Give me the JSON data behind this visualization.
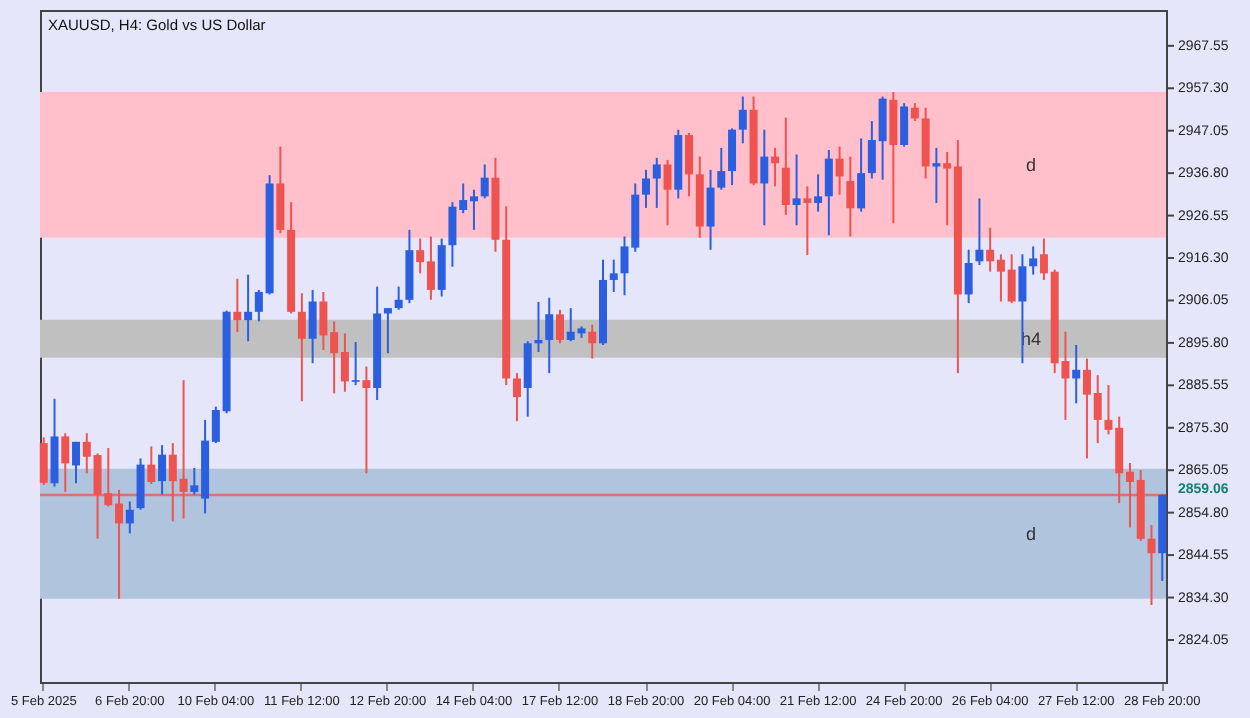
{
  "chart_data": {
    "type": "candlestick",
    "title": "XAUUSD, H4: Gold vs US Dollar",
    "categories": [
      "5 Feb 2025",
      null,
      null,
      null,
      null,
      null,
      null,
      null,
      "6 Feb 20:00",
      null,
      null,
      null,
      null,
      null,
      null,
      null,
      "10 Feb 04:00",
      null,
      null,
      null,
      null,
      null,
      null,
      null,
      "11 Feb 12:00",
      null,
      null,
      null,
      null,
      null,
      null,
      null,
      "12 Feb 20:00",
      null,
      null,
      null,
      null,
      null,
      null,
      null,
      "14 Feb 04:00",
      null,
      null,
      null,
      null,
      null,
      null,
      null,
      "17 Feb 12:00",
      null,
      null,
      null,
      null,
      null,
      null,
      null,
      "18 Feb 20:00",
      null,
      null,
      null,
      null,
      null,
      null,
      null,
      "20 Feb 04:00",
      null,
      null,
      null,
      null,
      null,
      null,
      null,
      "21 Feb 12:00",
      null,
      null,
      null,
      null,
      null,
      null,
      null,
      "24 Feb 20:00",
      null,
      null,
      null,
      null,
      null,
      null,
      null,
      "26 Feb 04:00",
      null,
      null,
      null,
      null,
      null,
      null,
      null,
      "27 Feb 12:00",
      null,
      null,
      null,
      null,
      null,
      null,
      null,
      "28 Feb 20:00"
    ],
    "ohlc": [
      [
        2871.6,
        2873.0,
        2861.5,
        2862.0
      ],
      [
        2861.9,
        2882.3,
        2861.1,
        2873.2
      ],
      [
        2873.2,
        2874.0,
        2859.8,
        2866.7
      ],
      [
        2866.2,
        2871.9,
        2861.9,
        2871.9
      ],
      [
        2871.9,
        2874.0,
        2864.3,
        2868.3
      ],
      [
        2868.7,
        2869.1,
        2848.5,
        2859.2
      ],
      [
        2859.5,
        2870.4,
        2856.3,
        2856.6
      ],
      [
        2857.0,
        2860.3,
        2834.0,
        2852.2
      ],
      [
        2852.2,
        2857.5,
        2849.8,
        2855.5
      ],
      [
        2855.9,
        2867.9,
        2855.5,
        2866.4
      ],
      [
        2866.4,
        2870.8,
        2861.7,
        2862.2
      ],
      [
        2862.4,
        2871.1,
        2859.2,
        2868.8
      ],
      [
        2868.8,
        2871.6,
        2852.7,
        2862.4
      ],
      [
        2863.0,
        2886.8,
        2853.4,
        2859.8
      ],
      [
        2859.8,
        2865.6,
        2859.2,
        2861.4
      ],
      [
        2858.2,
        2877.2,
        2854.6,
        2872.2
      ],
      [
        2871.9,
        2880.4,
        2871.6,
        2879.6
      ],
      [
        2879.3,
        2903.6,
        2878.8,
        2903.3
      ],
      [
        2903.3,
        2911.3,
        2898.4,
        2901.3
      ],
      [
        2901.3,
        2912.3,
        2896.2,
        2903.3
      ],
      [
        2903.3,
        2908.6,
        2901.0,
        2908.1
      ],
      [
        2907.8,
        2936.3,
        2907.5,
        2934.3
      ],
      [
        2934.3,
        2943.2,
        2922.3,
        2923.1
      ],
      [
        2923.1,
        2929.8,
        2902.9,
        2903.3
      ],
      [
        2903.3,
        2907.8,
        2881.7,
        2896.8
      ],
      [
        2896.8,
        2908.6,
        2890.9,
        2905.8
      ],
      [
        2905.8,
        2908.1,
        2894.1,
        2897.6
      ],
      [
        2898.4,
        2901.0,
        2883.6,
        2893.3
      ],
      [
        2893.6,
        2898.1,
        2884.0,
        2886.5
      ],
      [
        2886.4,
        2896.0,
        2885.6,
        2886.8
      ],
      [
        2886.8,
        2890.1,
        2864.3,
        2884.9
      ],
      [
        2884.9,
        2909.4,
        2882.0,
        2902.9
      ],
      [
        2902.9,
        2904.2,
        2893.3,
        2904.2
      ],
      [
        2904.2,
        2909.4,
        2903.8,
        2906.2
      ],
      [
        2906.2,
        2923.1,
        2905.4,
        2918.2
      ],
      [
        2918.2,
        2921.0,
        2912.6,
        2915.3
      ],
      [
        2915.5,
        2921.5,
        2906.2,
        2908.6
      ],
      [
        2908.6,
        2921.0,
        2907.0,
        2919.4
      ],
      [
        2919.4,
        2929.8,
        2914.2,
        2928.7
      ],
      [
        2927.9,
        2934.3,
        2927.1,
        2930.3
      ],
      [
        2930.0,
        2932.8,
        2923.1,
        2931.2
      ],
      [
        2931.2,
        2938.9,
        2930.7,
        2935.7
      ],
      [
        2935.7,
        2940.5,
        2917.8,
        2920.7
      ],
      [
        2920.7,
        2928.8,
        2885.6,
        2887.2
      ],
      [
        2887.2,
        2888.5,
        2876.9,
        2882.7
      ],
      [
        2884.9,
        2896.2,
        2878.0,
        2895.7
      ],
      [
        2895.7,
        2905.7,
        2893.6,
        2896.5
      ],
      [
        2896.5,
        2906.7,
        2888.5,
        2902.7
      ],
      [
        2902.7,
        2903.8,
        2895.7,
        2896.5
      ],
      [
        2896.5,
        2904.2,
        2896.2,
        2898.5
      ],
      [
        2898.1,
        2899.8,
        2897.0,
        2899.3
      ],
      [
        2898.5,
        2900.2,
        2892.0,
        2895.7
      ],
      [
        2895.7,
        2915.9,
        2895.3,
        2911.0
      ],
      [
        2911.0,
        2915.9,
        2908.1,
        2912.6
      ],
      [
        2912.6,
        2921.5,
        2907.3,
        2919.1
      ],
      [
        2918.8,
        2934.3,
        2917.8,
        2931.6
      ],
      [
        2931.6,
        2937.6,
        2928.4,
        2935.5
      ],
      [
        2935.5,
        2940.5,
        2928.4,
        2938.9
      ],
      [
        2938.9,
        2940.0,
        2924.2,
        2932.8
      ],
      [
        2932.8,
        2947.3,
        2930.7,
        2946.0
      ],
      [
        2946.0,
        2946.5,
        2931.2,
        2936.5
      ],
      [
        2936.5,
        2940.8,
        2921.2,
        2923.9
      ],
      [
        2923.9,
        2937.6,
        2918.3,
        2933.3
      ],
      [
        2933.3,
        2942.9,
        2932.8,
        2937.3
      ],
      [
        2937.3,
        2947.6,
        2933.9,
        2947.3
      ],
      [
        2947.3,
        2955.3,
        2944.0,
        2952.1
      ],
      [
        2952.1,
        2955.3,
        2933.9,
        2934.3
      ],
      [
        2934.3,
        2947.3,
        2924.2,
        2940.8
      ],
      [
        2940.8,
        2942.9,
        2933.6,
        2939.2
      ],
      [
        2938.1,
        2950.2,
        2926.7,
        2929.1
      ],
      [
        2929.1,
        2941.3,
        2924.2,
        2930.7
      ],
      [
        2930.7,
        2933.6,
        2917.0,
        2929.6
      ],
      [
        2929.6,
        2936.5,
        2927.5,
        2931.2
      ],
      [
        2931.2,
        2942.4,
        2921.8,
        2940.3
      ],
      [
        2940.3,
        2943.2,
        2931.6,
        2936.0
      ],
      [
        2934.9,
        2940.8,
        2921.5,
        2928.3
      ],
      [
        2928.3,
        2945.2,
        2927.5,
        2936.8
      ],
      [
        2936.8,
        2949.4,
        2935.5,
        2944.8
      ],
      [
        2944.5,
        2955.3,
        2935.2,
        2954.8
      ],
      [
        2954.5,
        2956.4,
        2924.7,
        2943.6
      ],
      [
        2943.6,
        2953.7,
        2943.2,
        2952.9
      ],
      [
        2952.6,
        2953.7,
        2949.4,
        2950.0
      ],
      [
        2950.0,
        2952.6,
        2935.5,
        2938.4
      ],
      [
        2938.4,
        2942.9,
        2929.6,
        2939.2
      ],
      [
        2939.2,
        2941.9,
        2924.2,
        2937.9
      ],
      [
        2938.4,
        2944.8,
        2888.5,
        2907.5
      ],
      [
        2907.5,
        2918.3,
        2905.4,
        2915.1
      ],
      [
        2915.5,
        2930.7,
        2914.6,
        2918.3
      ],
      [
        2918.3,
        2923.6,
        2913.0,
        2915.5
      ],
      [
        2915.9,
        2917.2,
        2905.8,
        2913.0
      ],
      [
        2913.5,
        2917.2,
        2905.4,
        2905.8
      ],
      [
        2905.8,
        2917.2,
        2890.9,
        2914.3
      ],
      [
        2914.3,
        2919.1,
        2912.3,
        2916.2
      ],
      [
        2917.2,
        2921.0,
        2911.0,
        2912.6
      ],
      [
        2913.0,
        2913.5,
        2888.5,
        2890.9
      ],
      [
        2891.4,
        2898.5,
        2877.2,
        2887.2
      ],
      [
        2887.2,
        2895.3,
        2881.2,
        2889.3
      ],
      [
        2889.3,
        2892.0,
        2867.9,
        2883.3
      ],
      [
        2883.7,
        2888.0,
        2871.6,
        2877.2
      ],
      [
        2877.2,
        2885.6,
        2873.7,
        2874.8
      ],
      [
        2875.3,
        2878.0,
        2857.1,
        2864.3
      ],
      [
        2864.7,
        2866.8,
        2851.2,
        2862.2
      ],
      [
        2862.7,
        2865.1,
        2848.0,
        2848.5
      ],
      [
        2848.5,
        2851.8,
        2832.5,
        2845.0
      ],
      [
        2845.0,
        2859.2,
        2838.3,
        2859.1
      ]
    ],
    "colors": [
      "#ef5350",
      "#2c5ee0",
      "#ef5350",
      "#2c5ee0",
      "#ef5350",
      "#ef5350",
      "#ef5350",
      "#ef5350",
      "#2c5ee0",
      "#2c5ee0",
      "#ef5350",
      "#2c5ee0",
      "#ef5350",
      "#ef5350",
      "#2c5ee0",
      "#2c5ee0",
      "#2c5ee0",
      "#2c5ee0",
      "#ef5350",
      "#2c5ee0",
      "#2c5ee0",
      "#2c5ee0",
      "#ef5350",
      "#ef5350",
      "#ef5350",
      "#2c5ee0",
      "#ef5350",
      "#ef5350",
      "#ef5350",
      "#2c5ee0",
      "#ef5350",
      "#2c5ee0",
      "#2c5ee0",
      "#2c5ee0",
      "#2c5ee0",
      "#ef5350",
      "#ef5350",
      "#2c5ee0",
      "#2c5ee0",
      "#2c5ee0",
      "#2c5ee0",
      "#2c5ee0",
      "#ef5350",
      "#ef5350",
      "#ef5350",
      "#2c5ee0",
      "#2c5ee0",
      "#2c5ee0",
      "#ef5350",
      "#2c5ee0",
      "#2c5ee0",
      "#ef5350",
      "#2c5ee0",
      "#2c5ee0",
      "#2c5ee0",
      "#2c5ee0",
      "#2c5ee0",
      "#2c5ee0",
      "#ef5350",
      "#2c5ee0",
      "#ef5350",
      "#ef5350",
      "#2c5ee0",
      "#2c5ee0",
      "#2c5ee0",
      "#2c5ee0",
      "#ef5350",
      "#2c5ee0",
      "#ef5350",
      "#ef5350",
      "#2c5ee0",
      "#ef5350",
      "#2c5ee0",
      "#2c5ee0",
      "#ef5350",
      "#ef5350",
      "#2c5ee0",
      "#2c5ee0",
      "#2c5ee0",
      "#ef5350",
      "#2c5ee0",
      "#ef5350",
      "#ef5350",
      "#2c5ee0",
      "#ef5350",
      "#ef5350",
      "#2c5ee0",
      "#2c5ee0",
      "#ef5350",
      "#ef5350",
      "#ef5350",
      "#2c5ee0",
      "#2c5ee0",
      "#ef5350",
      "#ef5350",
      "#ef5350",
      "#2c5ee0",
      "#ef5350",
      "#ef5350",
      "#ef5350",
      "#ef5350",
      "#ef5350",
      "#ef5350",
      "#ef5350",
      "#2c5ee0"
    ],
    "ylim": [
      2813.9,
      2976.2
    ],
    "yticks": [
      2967.55,
      {
        "value": 2957.3,
        "label": "2957.30"
      },
      2947.05,
      {
        "value": 2936.8,
        "label": "2936.80"
      },
      2926.55,
      {
        "value": 2916.3,
        "label": "2916.30"
      },
      2906.05,
      {
        "value": 2895.8,
        "label": "2895.80"
      },
      2885.55,
      {
        "value": 2875.3,
        "label": "2875.30"
      },
      2865.05,
      {
        "value": 2854.8,
        "label": "2854.80"
      },
      2844.55,
      {
        "value": 2834.3,
        "label": "2834.30"
      },
      2824.05
    ],
    "bands": [
      {
        "axis": "y",
        "from": 2921.2,
        "to": 2956.4,
        "label": "d",
        "color": "#ffc0cb"
      },
      {
        "axis": "y",
        "from": 2892.2,
        "to": 2901.4,
        "label": "h4",
        "color": "#c0c0c0"
      },
      {
        "axis": "y",
        "from": 2834.0,
        "to": 2865.4,
        "label": "d",
        "color": "#b0c4de"
      }
    ],
    "ref_lines": [
      {
        "axis": "y",
        "value": 2859.06,
        "label": "2859.06",
        "color": "#e07070",
        "line_style": "solid"
      }
    ],
    "grid": false
  }
}
